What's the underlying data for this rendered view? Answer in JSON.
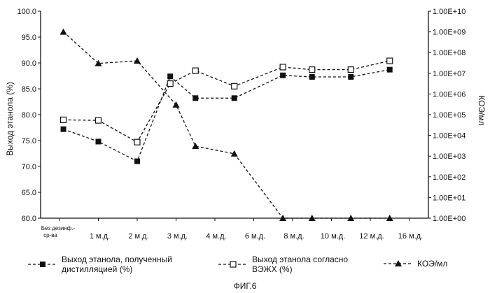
{
  "chart_data": {
    "type": "line",
    "title": "",
    "xlabel": "",
    "ylabel": "Выход этанола (%)",
    "y2label": "КОЭ/мл",
    "categories": [
      "Без дезинф.-ср-ва",
      "1 м.д.",
      "2 м.д.",
      "3 м.д.",
      "4 м.д.",
      "6 м.д.",
      "8 м.д.",
      "10 м.д.",
      "12 м.д.",
      "16 м.д."
    ],
    "ylim": [
      60,
      100
    ],
    "y_ticks": [
      "60.0",
      "65.0",
      "70.0",
      "75.0",
      "80.0",
      "85.0",
      "90.0",
      "95.0",
      "100.0"
    ],
    "y2lim": [
      1,
      10000000000
    ],
    "y2_scale": "log",
    "y2_ticks": [
      "1.00E+00",
      "1.00E+01",
      "1.00E+02",
      "1.00E+03",
      "1.00E+04",
      "1.00E+05",
      "1.00E+06",
      "1.00E+07",
      "1.00E+08",
      "1.00E+09",
      "1.00E+10"
    ],
    "grid": false,
    "legend_position": "bottom",
    "series": [
      {
        "name": "Выход этанола, полученный дистилляцией (%)",
        "axis": "left",
        "marker": "filled-square",
        "style": "dashed",
        "x": [
          0.1,
          1,
          2,
          2.85,
          3.5,
          4.5,
          5.75,
          6.5,
          7.5,
          8.5
        ],
        "values": [
          77.2,
          74.8,
          71.0,
          87.4,
          83.2,
          83.2,
          87.6,
          87.3,
          87.3,
          88.7
        ]
      },
      {
        "name": "Выход этанола согласно ВЭЖХ (%)",
        "axis": "left",
        "marker": "open-square",
        "style": "dashed",
        "x": [
          0.1,
          1,
          2,
          2.85,
          3.5,
          4.5,
          5.75,
          6.5,
          7.5,
          8.5
        ],
        "values": [
          79.0,
          78.9,
          74.7,
          86.0,
          88.5,
          85.5,
          89.2,
          88.7,
          88.7,
          90.4
        ]
      },
      {
        "name": "КОЭ/мл",
        "axis": "right",
        "marker": "filled-triangle",
        "style": "dashed",
        "x": [
          0.1,
          1,
          2,
          3,
          3.5,
          4.5,
          5.75,
          6.5,
          7.5,
          8.5
        ],
        "values": [
          1000000000,
          30000000,
          40000000,
          300000,
          3000,
          1300,
          1,
          1,
          1,
          1
        ]
      }
    ]
  },
  "figure_label": "ФИГ.6"
}
